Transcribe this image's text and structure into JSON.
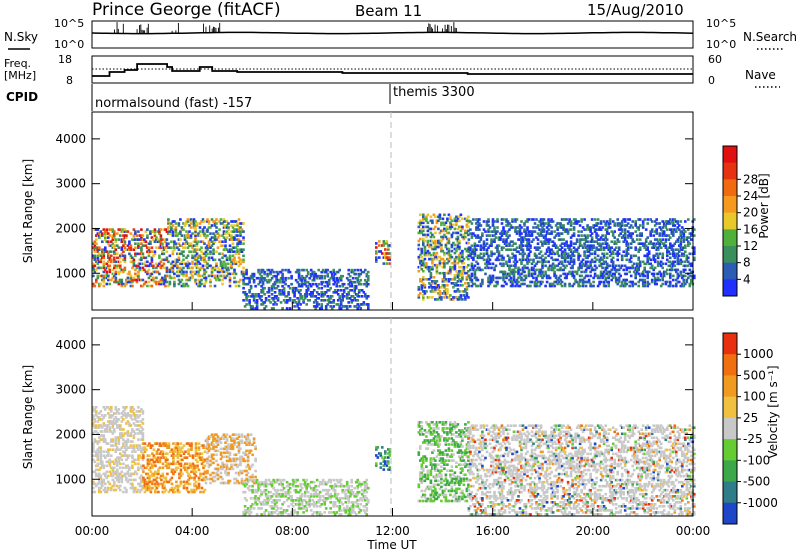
{
  "header": {
    "radar": "Prince George (fitACF)",
    "beam": "Beam 11",
    "date": "15/Aug/2010"
  },
  "noise_panel": {
    "left_label": "N.Sky",
    "right_label": "N.Search",
    "ticks_left": [
      "10^5",
      "10^0"
    ],
    "ticks_right": [
      "10^5",
      "10^0"
    ]
  },
  "freq_panel": {
    "left_label_top": "Freq.",
    "left_label_unit": "[MHz]",
    "right_label": "Nave",
    "ticks_left": [
      "18",
      "8"
    ],
    "ticks_right": [
      "60",
      "0"
    ]
  },
  "cpid": {
    "label": "CPID",
    "modes": [
      {
        "name": "normalsound (fast) -157"
      },
      {
        "name": "themis 3300"
      }
    ]
  },
  "chart_data": [
    {
      "type": "heatmap",
      "quantity": "Power",
      "ylabel": "Slant Range [km]",
      "xlabel": "",
      "ylim": [
        180,
        4600
      ],
      "yticks": [
        "1000",
        "2000",
        "3000",
        "4000"
      ],
      "xticks": [
        "00:00",
        "04:00",
        "08:00",
        "12:00",
        "16:00",
        "20:00",
        "00:00"
      ],
      "colorbar": {
        "title": "Power [dB]",
        "ticks": [
          "4",
          "8",
          "12",
          "16",
          "20",
          "24",
          "28"
        ],
        "colors": [
          "#2030ff",
          "#2a5db3",
          "#3b8f5c",
          "#4fb03c",
          "#e8c82a",
          "#f59a1e",
          "#f06a10",
          "#e63212",
          "#e01010"
        ]
      },
      "scatter_regions": [
        {
          "t_start": 0.0,
          "t_end": 3.0,
          "r_min": 700,
          "r_max": 2000,
          "level": "mixed-high"
        },
        {
          "t_start": 3.0,
          "t_end": 6.0,
          "r_min": 700,
          "r_max": 2200,
          "level": "mixed"
        },
        {
          "t_start": 6.0,
          "t_end": 11.0,
          "r_min": 200,
          "r_max": 1100,
          "level": "low"
        },
        {
          "t_start": 11.3,
          "t_end": 11.9,
          "r_min": 1200,
          "r_max": 1700,
          "level": "mixed-high"
        },
        {
          "t_start": 13.0,
          "t_end": 15.0,
          "r_min": 400,
          "r_max": 2300,
          "level": "mixed"
        },
        {
          "t_start": 15.0,
          "t_end": 24.0,
          "r_min": 700,
          "r_max": 2200,
          "level": "low"
        }
      ]
    },
    {
      "type": "heatmap",
      "quantity": "Velocity",
      "ylabel": "Slant Range [km]",
      "xlabel": "Time UT",
      "ylim": [
        180,
        4600
      ],
      "yticks": [
        "1000",
        "2000",
        "3000",
        "4000"
      ],
      "xticks": [
        "00:00",
        "04:00",
        "08:00",
        "12:00",
        "16:00",
        "20:00",
        "00:00"
      ],
      "colorbar": {
        "title": "Velocity [m s⁻¹]",
        "ticks": [
          "1000",
          "500",
          "100",
          "25",
          "-25",
          "-100",
          "-500",
          "-1000"
        ],
        "colors": [
          "#1e46c8",
          "#2e7d88",
          "#3da84a",
          "#66cc33",
          "#c8c8c8",
          "#f0c040",
          "#f09a20",
          "#f07010",
          "#e83010"
        ]
      },
      "scatter_regions": [
        {
          "t_start": 0.0,
          "t_end": 2.0,
          "r_min": 700,
          "r_max": 2600,
          "level": "gray"
        },
        {
          "t_start": 2.0,
          "t_end": 4.5,
          "r_min": 700,
          "r_max": 1800,
          "level": "orange"
        },
        {
          "t_start": 4.5,
          "t_end": 6.5,
          "r_min": 900,
          "r_max": 2000,
          "level": "orange-gray"
        },
        {
          "t_start": 6.0,
          "t_end": 11.0,
          "r_min": 200,
          "r_max": 1000,
          "level": "gray-green"
        },
        {
          "t_start": 11.3,
          "t_end": 11.9,
          "r_min": 1200,
          "r_max": 1700,
          "level": "blue-green"
        },
        {
          "t_start": 13.0,
          "t_end": 15.0,
          "r_min": 500,
          "r_max": 2300,
          "level": "green"
        },
        {
          "t_start": 15.0,
          "t_end": 24.0,
          "r_min": 200,
          "r_max": 2200,
          "level": "gray-mixed"
        }
      ]
    }
  ]
}
